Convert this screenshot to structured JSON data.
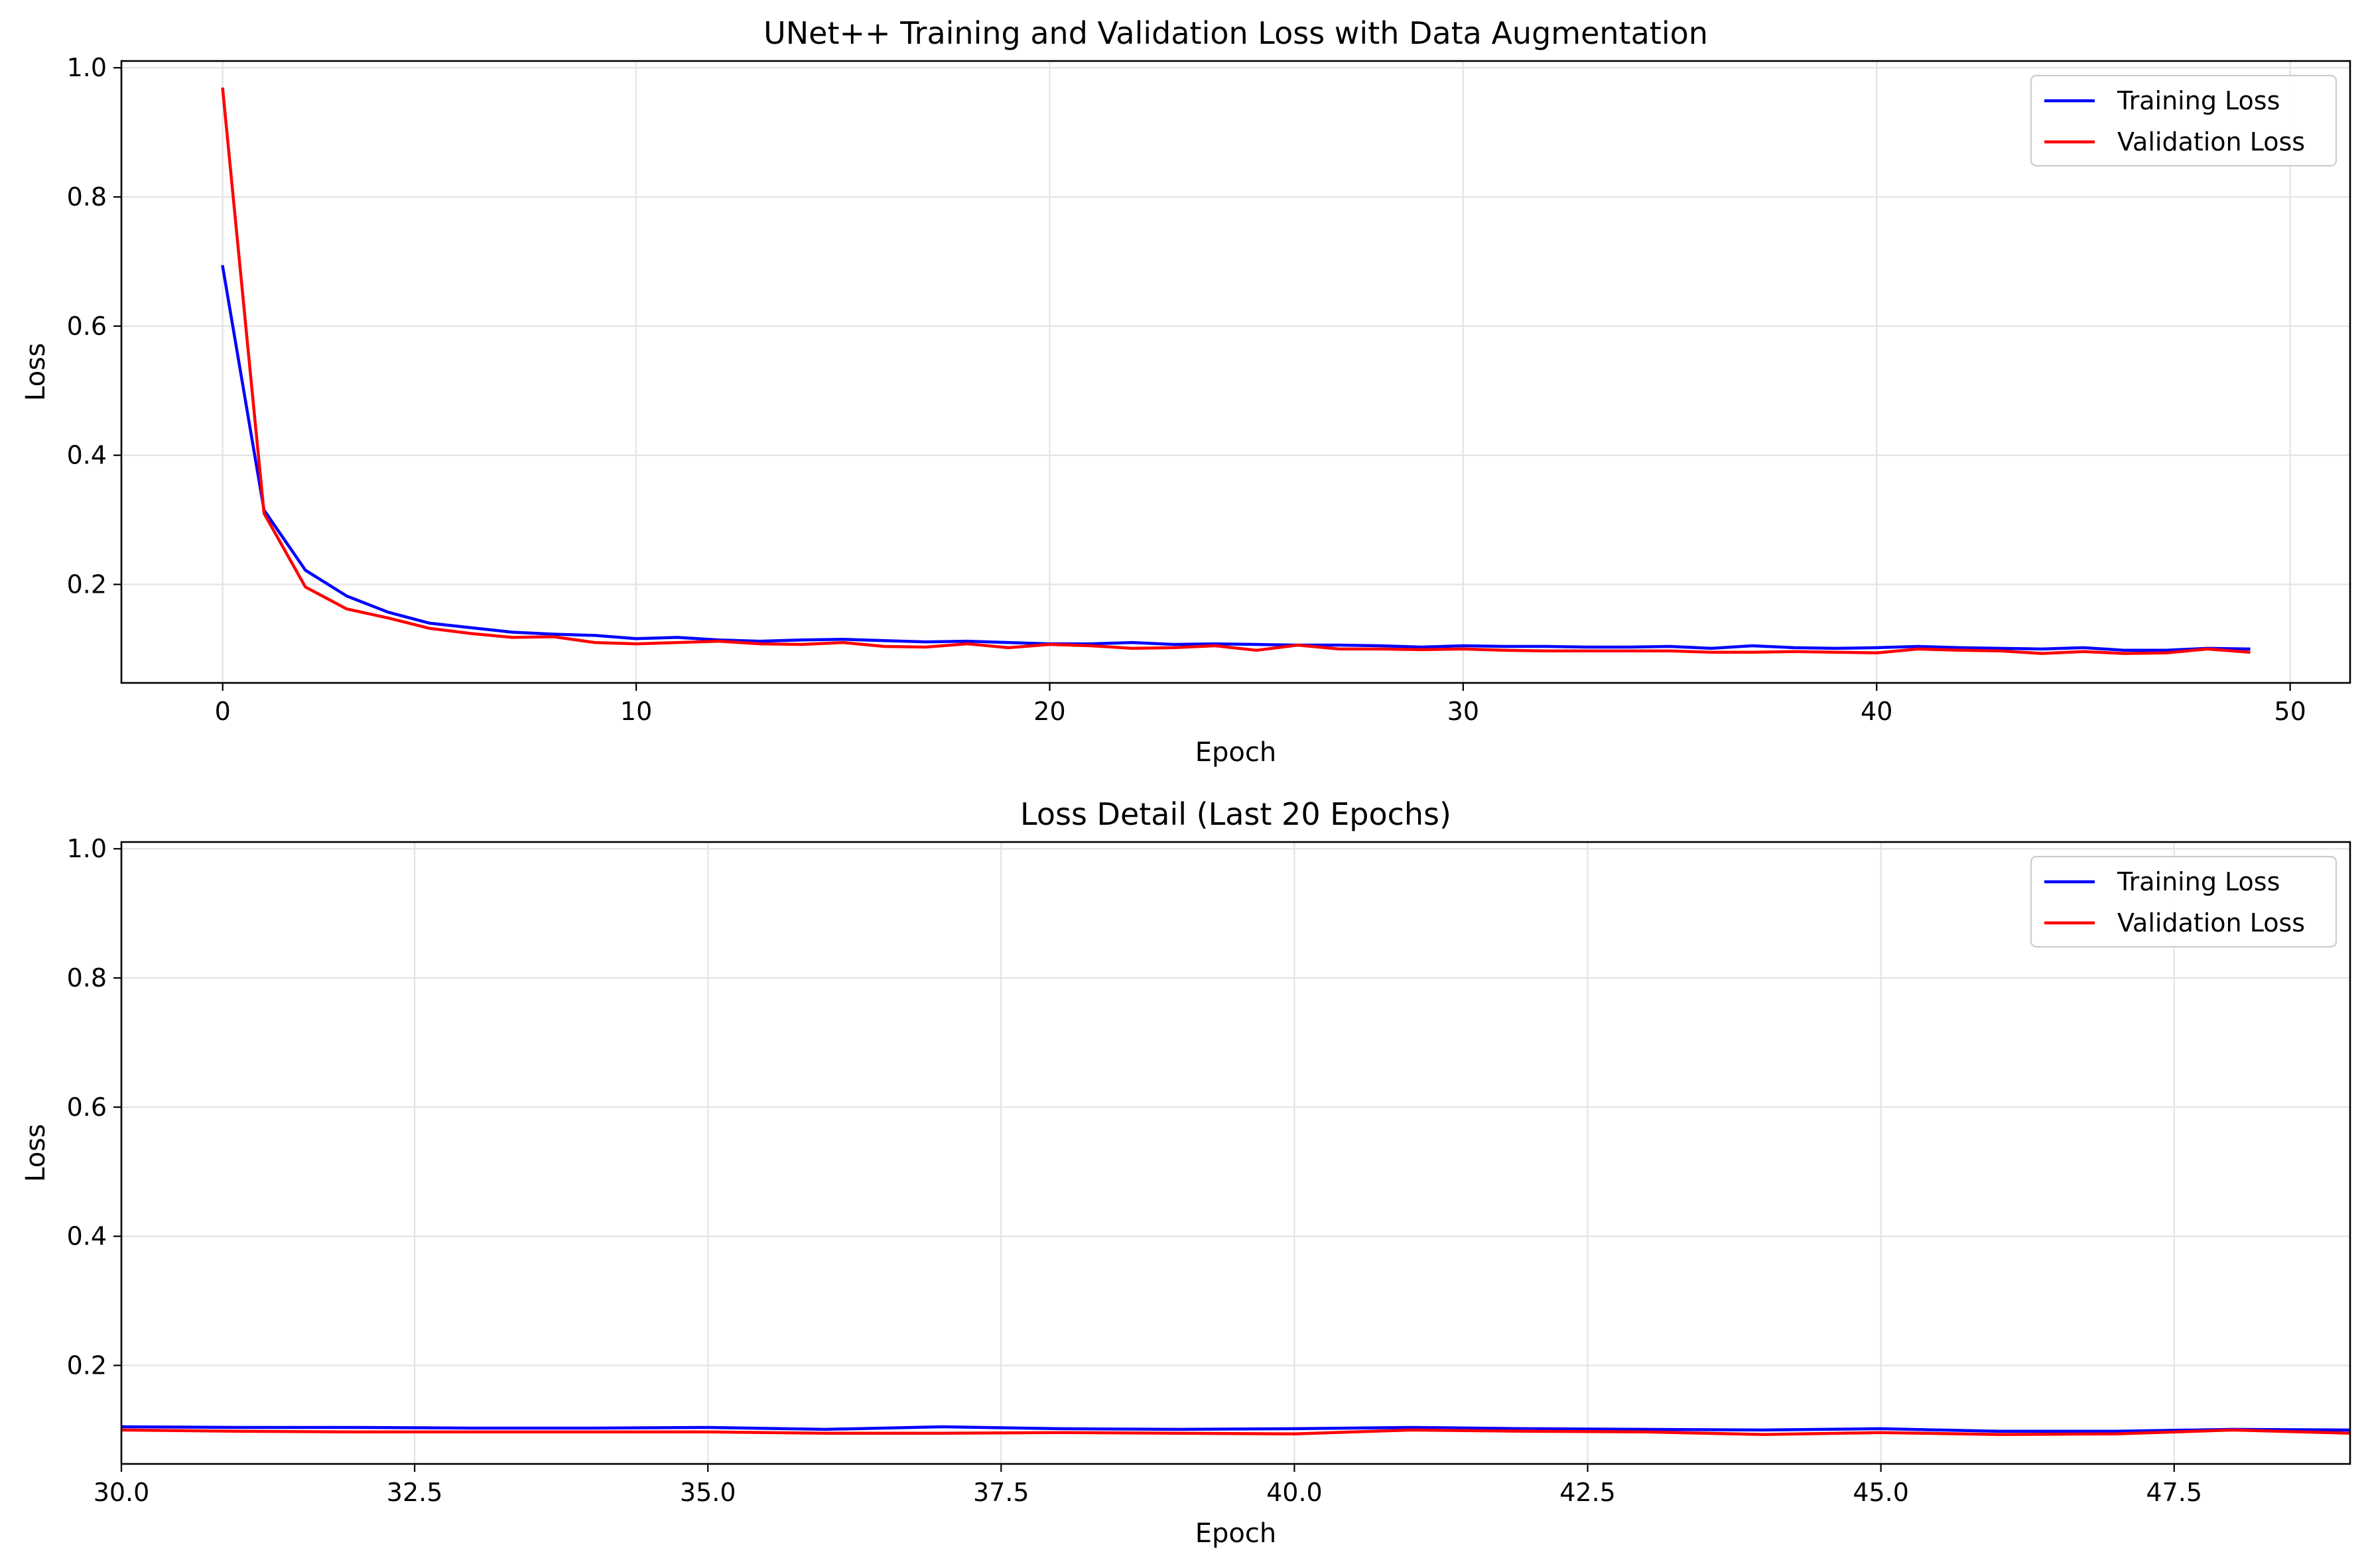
{
  "chart_data": [
    {
      "type": "line",
      "title": "UNet++ Training and Validation Loss with Data Augmentation",
      "xlabel": "Epoch",
      "ylabel": "Loss",
      "xlim": [
        -2.45,
        51.45
      ],
      "ylim": [
        0.0475,
        1.0105
      ],
      "xticks": [
        0,
        10,
        20,
        30,
        40,
        50
      ],
      "xtick_labels": [
        "0",
        "10",
        "20",
        "30",
        "40",
        "50"
      ],
      "yticks": [
        0.2,
        0.4,
        0.6,
        0.8,
        1.0
      ],
      "ytick_labels": [
        "0.2",
        "0.4",
        "0.6",
        "0.8",
        "1.0"
      ],
      "grid": true,
      "legend": "upper-right",
      "x": [
        0,
        1,
        2,
        3,
        4,
        5,
        6,
        7,
        8,
        9,
        10,
        11,
        12,
        13,
        14,
        15,
        16,
        17,
        18,
        19,
        20,
        21,
        22,
        23,
        24,
        25,
        26,
        27,
        28,
        29,
        30,
        31,
        32,
        33,
        34,
        35,
        36,
        37,
        38,
        39,
        40,
        41,
        42,
        43,
        44,
        45,
        46,
        47,
        48,
        49
      ],
      "series": [
        {
          "name": "Training Loss",
          "color": "#0000ff",
          "values": [
            0.692,
            0.315,
            0.222,
            0.182,
            0.157,
            0.14,
            0.133,
            0.126,
            0.123,
            0.121,
            0.116,
            0.118,
            0.114,
            0.112,
            0.114,
            0.115,
            0.113,
            0.111,
            0.112,
            0.11,
            0.108,
            0.108,
            0.11,
            0.107,
            0.108,
            0.107,
            0.106,
            0.106,
            0.105,
            0.103,
            0.105,
            0.104,
            0.104,
            0.103,
            0.103,
            0.104,
            0.101,
            0.105,
            0.102,
            0.101,
            0.102,
            0.104,
            0.102,
            0.101,
            0.1,
            0.102,
            0.098,
            0.098,
            0.101,
            0.1
          ]
        },
        {
          "name": "Validation Loss",
          "color": "#ff0000",
          "values": [
            0.967,
            0.31,
            0.196,
            0.162,
            0.148,
            0.132,
            0.124,
            0.118,
            0.119,
            0.11,
            0.108,
            0.11,
            0.112,
            0.108,
            0.107,
            0.11,
            0.104,
            0.103,
            0.108,
            0.102,
            0.107,
            0.105,
            0.101,
            0.102,
            0.105,
            0.098,
            0.106,
            0.1,
            0.1,
            0.099,
            0.1,
            0.098,
            0.097,
            0.097,
            0.097,
            0.097,
            0.095,
            0.095,
            0.096,
            0.095,
            0.094,
            0.1,
            0.098,
            0.097,
            0.093,
            0.096,
            0.093,
            0.094,
            0.1,
            0.095
          ]
        }
      ]
    },
    {
      "type": "line",
      "title": "Loss Detail (Last 20 Epochs)",
      "xlabel": "Epoch",
      "ylabel": "Loss",
      "xlim": [
        30,
        49
      ],
      "ylim": [
        0.0475,
        1.0105
      ],
      "xticks": [
        30.0,
        32.5,
        35.0,
        37.5,
        40.0,
        42.5,
        45.0,
        47.5
      ],
      "xtick_labels": [
        "30.0",
        "32.5",
        "35.0",
        "37.5",
        "40.0",
        "42.5",
        "45.0",
        "47.5"
      ],
      "yticks": [
        0.2,
        0.4,
        0.6,
        0.8,
        1.0
      ],
      "ytick_labels": [
        "0.2",
        "0.4",
        "0.6",
        "0.8",
        "1.0"
      ],
      "grid": true,
      "legend": "upper-right",
      "x": [
        30,
        31,
        32,
        33,
        34,
        35,
        36,
        37,
        38,
        39,
        40,
        41,
        42,
        43,
        44,
        45,
        46,
        47,
        48,
        49
      ],
      "series": [
        {
          "name": "Training Loss",
          "color": "#0000ff",
          "values": [
            0.105,
            0.104,
            0.104,
            0.103,
            0.103,
            0.104,
            0.101,
            0.105,
            0.102,
            0.101,
            0.102,
            0.104,
            0.102,
            0.101,
            0.1,
            0.102,
            0.098,
            0.098,
            0.101,
            0.1
          ]
        },
        {
          "name": "Validation Loss",
          "color": "#ff0000",
          "values": [
            0.1,
            0.098,
            0.097,
            0.097,
            0.097,
            0.097,
            0.095,
            0.095,
            0.096,
            0.095,
            0.094,
            0.1,
            0.098,
            0.097,
            0.093,
            0.096,
            0.093,
            0.094,
            0.1,
            0.095
          ]
        }
      ]
    }
  ]
}
